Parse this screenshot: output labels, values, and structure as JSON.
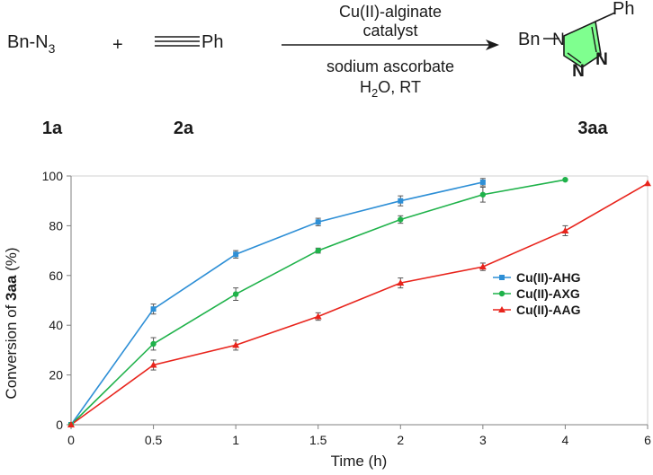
{
  "scheme": {
    "reactant1": "Bn-N",
    "reactant1_sub": "3",
    "plus": "+",
    "reactant2": "Ph",
    "above_arrow_1": "Cu(II)-alginate",
    "above_arrow_2": "catalyst",
    "below_arrow_1": "sodium ascorbate",
    "below_arrow_2_a": "H",
    "below_arrow_2_sub": "2",
    "below_arrow_2_b": "O, RT",
    "product_bn": "Bn",
    "product_ph": "Ph",
    "product_n1": "N",
    "product_n2": "N",
    "product_n3": "N",
    "label1": "1a",
    "label2": "2a",
    "label3": "3aa",
    "ring_color": "#7fff8f"
  },
  "chart_data": {
    "type": "line",
    "x_ticks": [
      "0",
      "0.5",
      "1",
      "1.5",
      "2",
      "3",
      "4",
      "6"
    ],
    "ylim": [
      0,
      100
    ],
    "y_ticks": [
      "0",
      "20",
      "40",
      "60",
      "80",
      "100"
    ],
    "xlabel": "Time (h)",
    "ylabel_prefix": "Conversion of ",
    "ylabel_bold": "3aa",
    "ylabel_suffix": " (%)",
    "legend_position": "center-right",
    "grid": false,
    "series": [
      {
        "name": "Cu(II)-AHG",
        "color": "#2e8fd6",
        "marker": "square",
        "values": [
          0,
          46.5,
          68.5,
          81.5,
          90,
          97.5
        ],
        "errors": [
          0,
          2,
          1.5,
          1.5,
          2,
          1.5
        ]
      },
      {
        "name": "Cu(II)-AXG",
        "color": "#1fb24a",
        "marker": "circle",
        "values": [
          0,
          32.5,
          52.5,
          70,
          82.5,
          92.5,
          98.5
        ],
        "errors": [
          0,
          2.5,
          2.5,
          1,
          1.5,
          3,
          0
        ]
      },
      {
        "name": "Cu(II)-AAG",
        "color": "#e8241c",
        "marker": "triangle",
        "values": [
          0,
          24,
          32,
          43.5,
          57,
          63.5,
          78,
          97
        ],
        "errors": [
          0,
          2,
          2,
          1.5,
          2,
          1.5,
          2,
          0
        ]
      }
    ]
  }
}
